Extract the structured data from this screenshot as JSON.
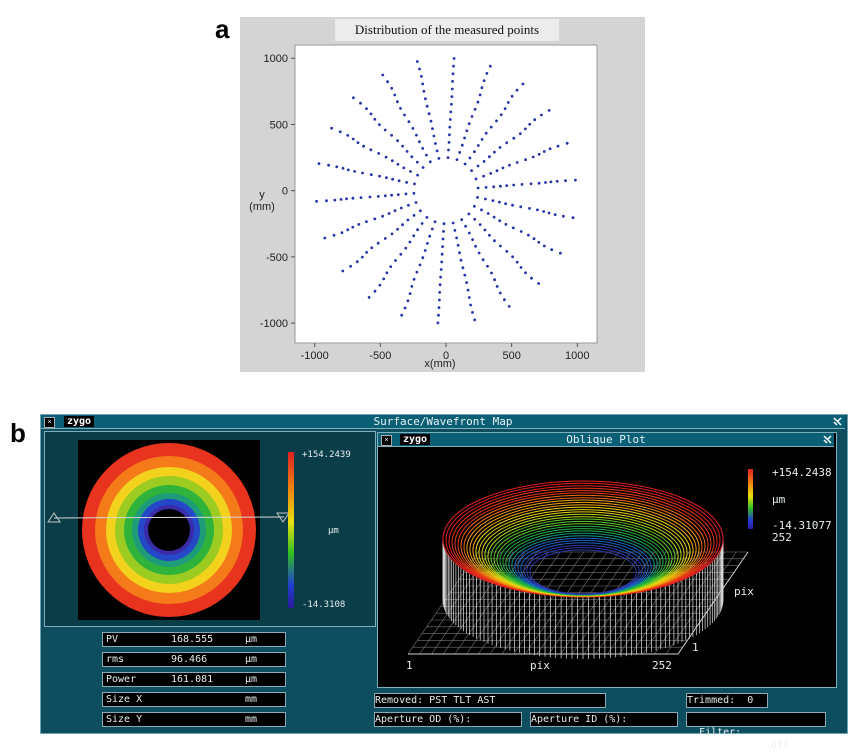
{
  "panel_labels": {
    "a": "a",
    "b": "b"
  },
  "figure_a": {
    "title": "Distribution of the measured points",
    "chart_data": {
      "type": "scatter",
      "title": "Distribution of the measured points",
      "xlabel": "x(mm)",
      "ylabel": "y\n(mm)",
      "ylabel_top": "y",
      "ylabel_unit": "(mm)",
      "xlim": [
        -1150,
        1150
      ],
      "ylim": [
        -1150,
        1100
      ],
      "x_ticks": [
        -1000,
        -500,
        0,
        500,
        1000
      ],
      "y_ticks": [
        1000,
        500,
        0,
        -500,
        -1000
      ],
      "x_tick_labels": [
        "-1000",
        "-500",
        "0",
        "500",
        "1000"
      ],
      "y_tick_labels": [
        "1000",
        "500",
        "0",
        "-500",
        "-1000"
      ],
      "pattern": "points on radial lines between radius 250 and 1000 mm",
      "inner_radius": 250,
      "outer_radius": 1000,
      "point_color": "#2633a8"
    }
  },
  "zygo": {
    "window_title": "Surface/Wavefront Map",
    "logo": "zygo",
    "close_label": "×",
    "pin_icon": "pin-icon",
    "left_scale": {
      "max": "+154.2439",
      "unit": "μm",
      "min": "-14.3108"
    },
    "oblique": {
      "title": "Oblique Plot",
      "logo": "zygo",
      "scale_max": "+154.2438",
      "scale_unit": "μm",
      "scale_min": "-14.31077",
      "scale_extra": "252",
      "axis_x_start": "1",
      "axis_x_label": "pix",
      "axis_x_end": "252",
      "axis_y_label": "pix",
      "axis_y_start": "1"
    },
    "stats": [
      {
        "name": "PV",
        "value": "168.555",
        "unit": "μm"
      },
      {
        "name": "rms",
        "value": "96.466",
        "unit": "μm"
      },
      {
        "name": "Power",
        "value": "161.081",
        "unit": "μm"
      },
      {
        "name": "Size X",
        "value": "",
        "unit": "mm"
      },
      {
        "name": "Size Y",
        "value": "",
        "unit": "mm"
      }
    ],
    "removed": "Removed: PST TLT AST",
    "trimmed": "Trimmed:  0",
    "aperture_od": "Aperture OD (%):",
    "aperture_id": "Aperture ID (%):",
    "filter_label": "Filter:",
    "filter_value": "Off"
  }
}
